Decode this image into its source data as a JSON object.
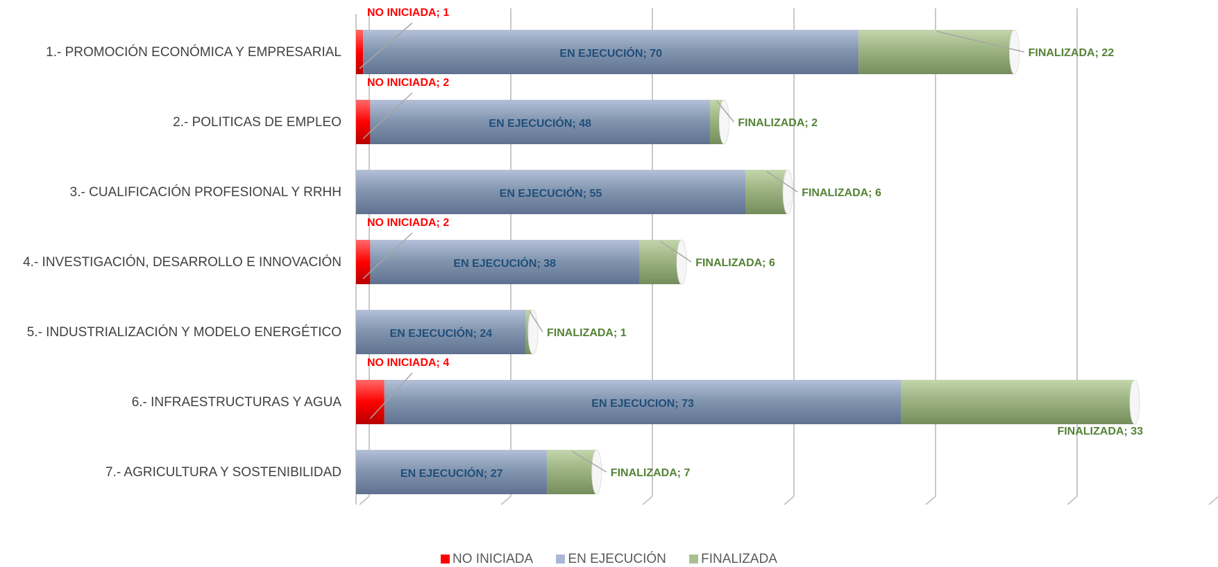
{
  "chart_data": {
    "type": "bar",
    "orientation": "horizontal",
    "stacked": true,
    "categories": [
      "1.- PROMOCIÓN ECONÓMICA Y EMPRESARIAL",
      "2.- POLITICAS DE EMPLEO",
      "3.- CUALIFICACIÓN PROFESIONAL Y RRHH",
      "4.- INVESTIGACIÓN, DESARROLLO E INNOVACIÓN",
      "5.- INDUSTRIALIZACIÓN Y MODELO ENERGÉTICO",
      "6.- INFRAESTRUCTURAS Y AGUA",
      "7.- AGRICULTURA Y SOSTENIBILIDAD"
    ],
    "series": [
      {
        "name": "NO INICIADA",
        "color": "#ff0000",
        "values": [
          1,
          2,
          0,
          2,
          0,
          4,
          0
        ],
        "labels": [
          "NO INICIADA; 1",
          "NO INICIADA; 2",
          "",
          "NO INICIADA; 2",
          "",
          "NO INICIADA; 4",
          ""
        ]
      },
      {
        "name": "EN EJECUCIÓN",
        "color": "#8497b0",
        "values": [
          70,
          48,
          55,
          38,
          24,
          73,
          27
        ],
        "labels": [
          "EN EJECUCIÓN; 70",
          "EN EJECUCIÓN; 48",
          "EN EJECUCIÓN; 55",
          "EN EJECUCIÓN; 38",
          "EN EJECUCIÓN; 24",
          "EN EJECUCION; 73",
          "EN EJECUCIÓN; 27"
        ]
      },
      {
        "name": "FINALIZADA",
        "color": "#a9c08e",
        "values": [
          22,
          2,
          6,
          6,
          1,
          33,
          7
        ],
        "labels": [
          "FINALIZADA; 22",
          "FINALIZADA; 2",
          "FINALIZADA; 6",
          "FINALIZADA; 6",
          "FINALIZADA; 1",
          "FINALIZADA; 33",
          "FINALIZADA; 7"
        ]
      }
    ],
    "xlim": [
      0,
      120
    ],
    "grid": true,
    "legend_position": "bottom",
    "title": "",
    "xlabel": "",
    "ylabel": ""
  },
  "legend": {
    "items": [
      {
        "label": "NO INICIADA",
        "color": "#ff0000"
      },
      {
        "label": "EN EJECUCIÓN",
        "color": "#aab8d6"
      },
      {
        "label": "FINALIZADA",
        "color": "#a9c08e"
      }
    ]
  }
}
